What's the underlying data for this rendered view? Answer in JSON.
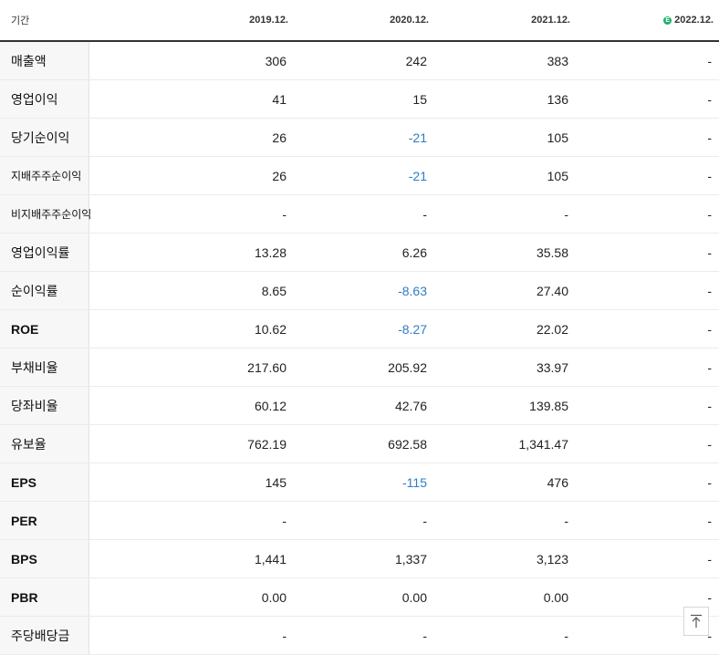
{
  "header": {
    "label": "기간",
    "periods": [
      "2019.12.",
      "2020.12.",
      "2021.12.",
      "2022.12."
    ],
    "estimate_badge": "E"
  },
  "rows": [
    {
      "label": "매출액",
      "values": [
        "306",
        "242",
        "383",
        "-"
      ]
    },
    {
      "label": "영업이익",
      "values": [
        "41",
        "15",
        "136",
        "-"
      ]
    },
    {
      "label": "당기순이익",
      "values": [
        "26",
        "-21",
        "105",
        "-"
      ]
    },
    {
      "label": "지배주주순이익",
      "values": [
        "26",
        "-21",
        "105",
        "-"
      ]
    },
    {
      "label": "비지배주주순이익",
      "values": [
        "-",
        "-",
        "-",
        "-"
      ]
    },
    {
      "label": "영업이익률",
      "values": [
        "13.28",
        "6.26",
        "35.58",
        "-"
      ]
    },
    {
      "label": "순이익률",
      "values": [
        "8.65",
        "-8.63",
        "27.40",
        "-"
      ]
    },
    {
      "label": "ROE",
      "values": [
        "10.62",
        "-8.27",
        "22.02",
        "-"
      ]
    },
    {
      "label": "부채비율",
      "values": [
        "217.60",
        "205.92",
        "33.97",
        "-"
      ]
    },
    {
      "label": "당좌비율",
      "values": [
        "60.12",
        "42.76",
        "139.85",
        "-"
      ]
    },
    {
      "label": "유보율",
      "values": [
        "762.19",
        "692.58",
        "1,341.47",
        "-"
      ]
    },
    {
      "label": "EPS",
      "values": [
        "145",
        "-115",
        "476",
        "-"
      ]
    },
    {
      "label": "PER",
      "values": [
        "-",
        "-",
        "-",
        "-"
      ]
    },
    {
      "label": "BPS",
      "values": [
        "1,441",
        "1,337",
        "3,123",
        "-"
      ]
    },
    {
      "label": "PBR",
      "values": [
        "0.00",
        "0.00",
        "0.00",
        "-"
      ]
    },
    {
      "label": "주당배당금",
      "values": [
        "-",
        "-",
        "-",
        "-"
      ]
    }
  ],
  "colors": {
    "negative": "#2f7dc1",
    "estimate": "#1cb06a"
  },
  "icons": {
    "scroll_top": "arrow-up-icon"
  }
}
